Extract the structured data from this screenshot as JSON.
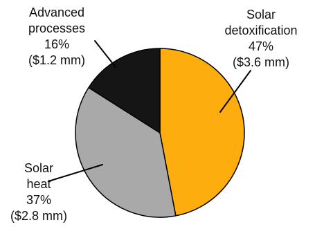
{
  "chart_data": {
    "type": "pie",
    "slices": [
      {
        "id": "solar-detox",
        "lines": [
          "Solar",
          "detoxification",
          "47%",
          "($3.6 mm)"
        ],
        "percent": 47,
        "amount_mm": 3.6,
        "color": "#FEAD0F"
      },
      {
        "id": "solar-heat",
        "lines": [
          "Solar",
          "heat",
          "37%",
          "($2.8 mm)"
        ],
        "percent": 37,
        "amount_mm": 2.8,
        "color": "#A9A9A9"
      },
      {
        "id": "advanced-processes",
        "lines": [
          "Advanced",
          "processes",
          "16%",
          "($1.2 mm)"
        ],
        "percent": 16,
        "amount_mm": 1.2,
        "color": "#151515"
      }
    ],
    "start_angle": "12 o'clock",
    "direction": "clockwise",
    "legend": "none",
    "labels": "outside with leader lines"
  }
}
